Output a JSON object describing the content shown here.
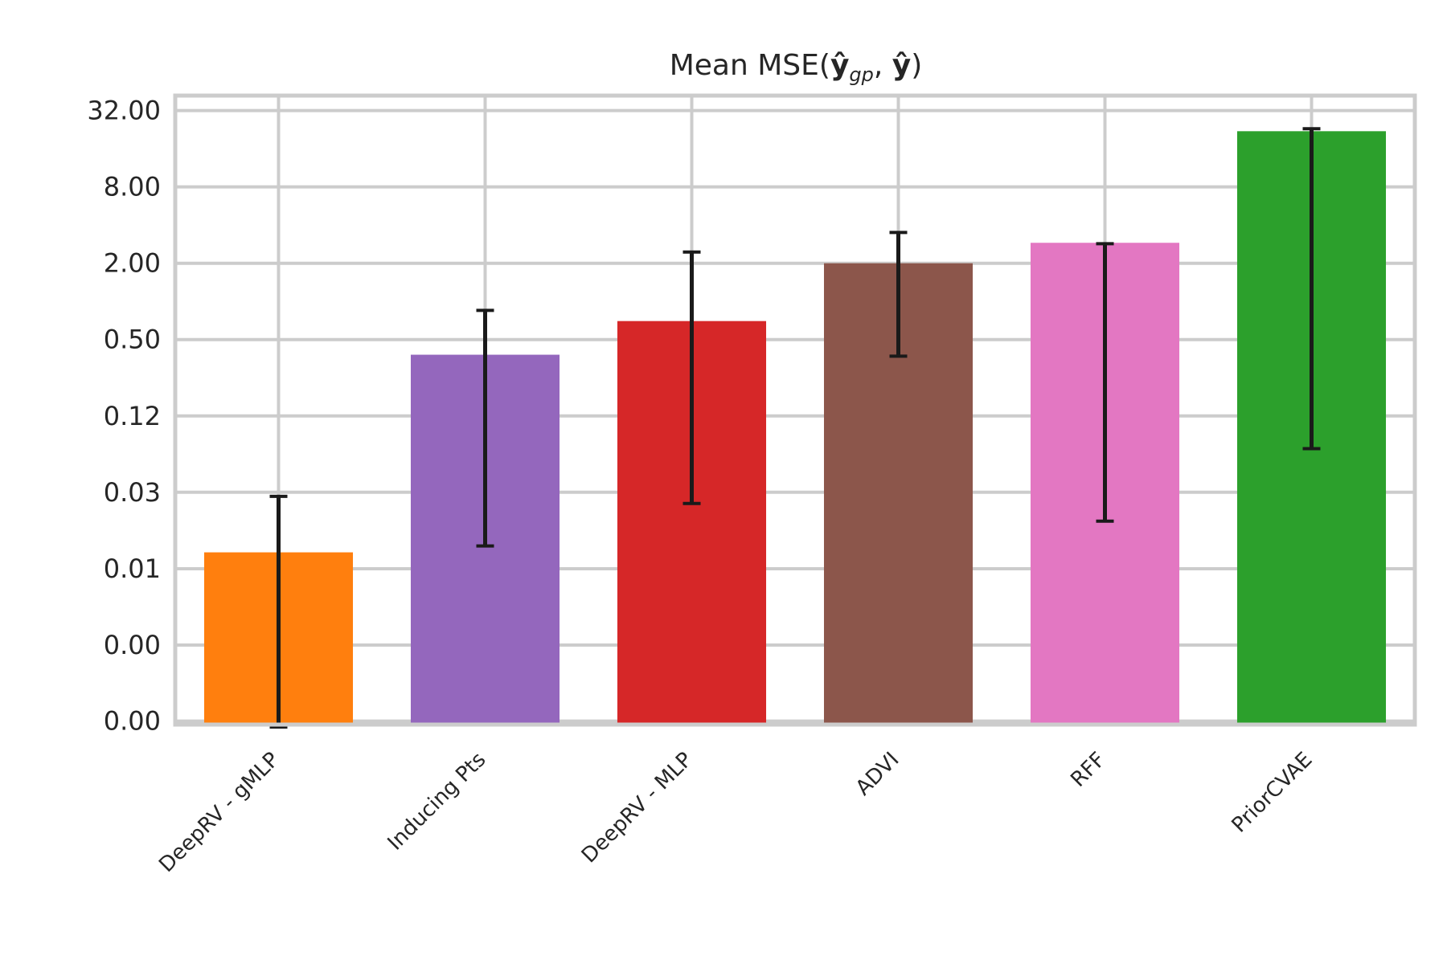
{
  "chart_data": {
    "type": "bar",
    "title": {
      "prefix": "Mean MSE(",
      "y_hat": "ŷ",
      "gp": "gp",
      "sep": ", ",
      "suffix": ")"
    },
    "xlabel": "",
    "ylabel": "",
    "yscale": "log2",
    "ylim": [
      0.00046,
      42
    ],
    "y_ticks": [
      {
        "value": 0.00049,
        "label": "0.00"
      },
      {
        "value": 0.00195,
        "label": "0.00"
      },
      {
        "value": 0.0078,
        "label": "0.01"
      },
      {
        "value": 0.03125,
        "label": "0.03"
      },
      {
        "value": 0.125,
        "label": "0.12"
      },
      {
        "value": 0.5,
        "label": "0.50"
      },
      {
        "value": 2.0,
        "label": "2.00"
      },
      {
        "value": 8.0,
        "label": "8.00"
      },
      {
        "value": 32.0,
        "label": "32.00"
      }
    ],
    "grid": true,
    "categories": [
      "DeepRV - gMLP",
      "Inducing Pts",
      "DeepRV - MLP",
      "ADVI",
      "RFF",
      "PriorCVAE"
    ],
    "values": [
      0.0105,
      0.38,
      0.7,
      2.0,
      2.9,
      22.0
    ],
    "errors": [
      {
        "low": 0.00044,
        "high": 0.029
      },
      {
        "low": 0.0118,
        "high": 0.85
      },
      {
        "low": 0.0255,
        "high": 2.45
      },
      {
        "low": 0.37,
        "high": 3.5
      },
      {
        "low": 0.0185,
        "high": 2.85
      },
      {
        "low": 0.069,
        "high": 23.0
      }
    ],
    "colors": [
      "#ff7f0e",
      "#9467bd",
      "#d62728",
      "#8c564b",
      "#e377c2",
      "#2ca02c"
    ],
    "errorbar_color": "#1a1a1a",
    "grid_color": "#cccccc"
  }
}
